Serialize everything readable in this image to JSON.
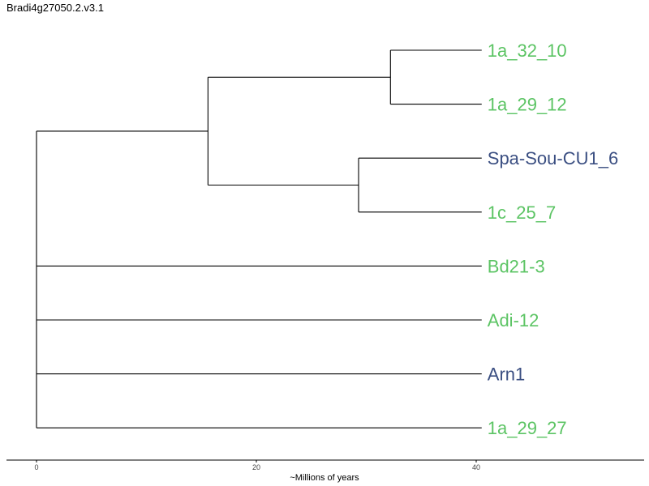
{
  "title": "Bradi4g27050.2.v3.1",
  "colors": {
    "green": "#5cc464",
    "blue": "#3b4f82",
    "line": "#000000"
  },
  "chart_data": {
    "type": "dendrogram",
    "xlabel": "~Millions of years",
    "xlim": [
      -2.6,
      55.3
    ],
    "xticks": [
      0,
      20,
      40
    ],
    "leaves": [
      {
        "name": "1a_32_10",
        "color": "green"
      },
      {
        "name": "1a_29_12",
        "color": "green"
      },
      {
        "name": "Spa-Sou-CU1_6",
        "color": "blue"
      },
      {
        "name": "1c_25_7",
        "color": "green"
      },
      {
        "name": "Bd21-3",
        "color": "green"
      },
      {
        "name": "Adi-12",
        "color": "green"
      },
      {
        "name": "Arn1",
        "color": "blue"
      },
      {
        "name": "1a_29_27",
        "color": "green"
      }
    ],
    "tree": {
      "x": 0,
      "children": [
        {
          "x": 15.6,
          "children": [
            {
              "x": 32.2,
              "children": [
                {
                  "leaf": 0
                },
                {
                  "leaf": 1
                }
              ]
            },
            {
              "x": 29.3,
              "children": [
                {
                  "leaf": 2
                },
                {
                  "leaf": 3
                }
              ]
            }
          ]
        },
        {
          "leaf": 4
        },
        {
          "leaf": 5
        },
        {
          "leaf": 6
        },
        {
          "leaf": 7
        }
      ]
    },
    "leaf_x": 40.5
  }
}
